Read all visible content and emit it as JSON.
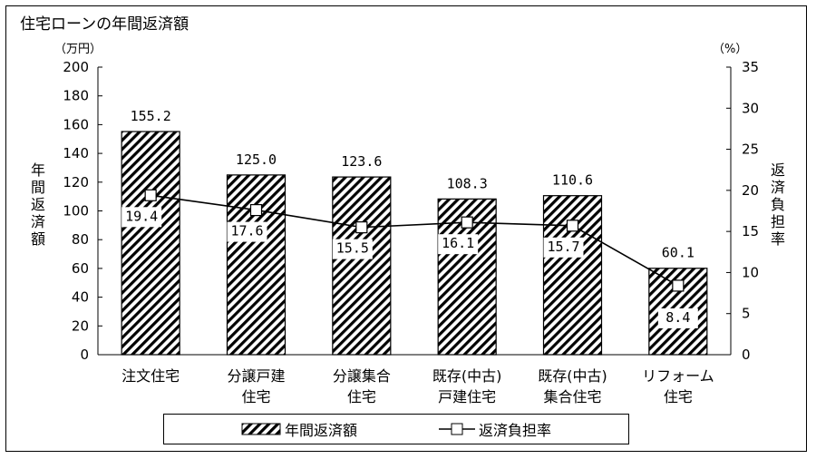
{
  "chart_data": {
    "type": "bar",
    "title": "住宅ローンの年間返済額",
    "categories": [
      "注文住宅",
      "分譲戸建住宅",
      "分譲集合住宅",
      "既存(中古)戸建住宅",
      "既存(中古)集合住宅",
      "リフォーム住宅"
    ],
    "category_lines": [
      [
        "注文住宅"
      ],
      [
        "分譲戸建",
        "住宅"
      ],
      [
        "分譲集合",
        "住宅"
      ],
      [
        "既存(中古)",
        "戸建住宅"
      ],
      [
        "既存(中古)",
        "集合住宅"
      ],
      [
        "リフォーム",
        "住宅"
      ]
    ],
    "series": [
      {
        "name": "年間返済額",
        "type": "bar",
        "axis": "left",
        "values": [
          155.2,
          125.0,
          123.6,
          108.3,
          110.6,
          60.1
        ],
        "labels": [
          "155.2",
          "125.0",
          "123.6",
          "108.3",
          "110.6",
          "60.1"
        ]
      },
      {
        "name": "返済負担率",
        "type": "line",
        "axis": "right",
        "values": [
          19.4,
          17.6,
          15.5,
          16.1,
          15.7,
          8.4
        ],
        "labels": [
          "19.4",
          "17.6",
          "15.5",
          "16.1",
          "15.7",
          "8.4"
        ]
      }
    ],
    "ylabel": "年間返済額",
    "y_unit": "（万円）",
    "ylim": [
      0,
      200
    ],
    "yticks": [
      0,
      20,
      40,
      60,
      80,
      100,
      120,
      140,
      160,
      180,
      200
    ],
    "y2label": "返済負担率",
    "y2_unit": "（%）",
    "y2lim": [
      0,
      35
    ],
    "y2ticks": [
      0,
      5,
      10,
      15,
      20,
      25,
      30,
      35
    ],
    "grid": false,
    "legend_position": "bottom",
    "colors": {
      "bar_hatch": "#000000",
      "bar_fill": "#ffffff",
      "line": "#000000"
    }
  }
}
